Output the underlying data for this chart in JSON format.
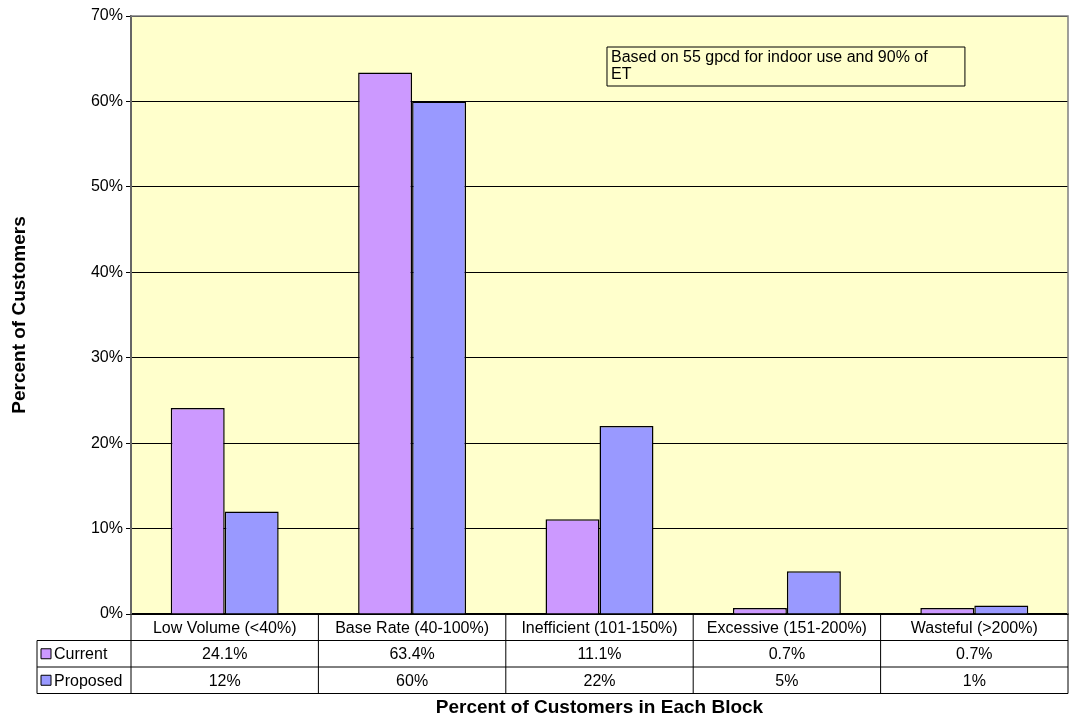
{
  "chart_data": {
    "type": "bar",
    "xlabel": "Percent of Customers in Each Block",
    "ylabel": "Percent of Customers",
    "categories": [
      "Low Volume (<40%)",
      "Base Rate (40-100%)",
      "Inefficient (101-150%)",
      "Excessive (151-200%)",
      "Wasteful (>200%)"
    ],
    "series": [
      {
        "name": "Current",
        "color": "#cc99ff",
        "values": [
          24.1,
          63.4,
          11.1,
          0.7,
          0.7
        ],
        "value_labels": [
          "24.1%",
          "63.4%",
          "11.1%",
          "0.7%",
          "0.7%"
        ]
      },
      {
        "name": "Proposed",
        "color": "#9999ff",
        "values": [
          12,
          60,
          22,
          5,
          1
        ],
        "value_labels": [
          "12%",
          "60%",
          "22%",
          "5%",
          "1%"
        ]
      }
    ],
    "ylim": [
      0,
      70
    ],
    "yticks": [
      {
        "value": 0,
        "label": "0%"
      },
      {
        "value": 10,
        "label": "10%"
      },
      {
        "value": 20,
        "label": "20%"
      },
      {
        "value": 30,
        "label": "30%"
      },
      {
        "value": 40,
        "label": "40%"
      },
      {
        "value": 50,
        "label": "50%"
      },
      {
        "value": 60,
        "label": "60%"
      },
      {
        "value": 70,
        "label": "70%"
      }
    ],
    "grid": "y",
    "legend": "bottom left",
    "annotations": [
      "Based on 55 gpcd for indoor use and 90% of ET"
    ]
  }
}
